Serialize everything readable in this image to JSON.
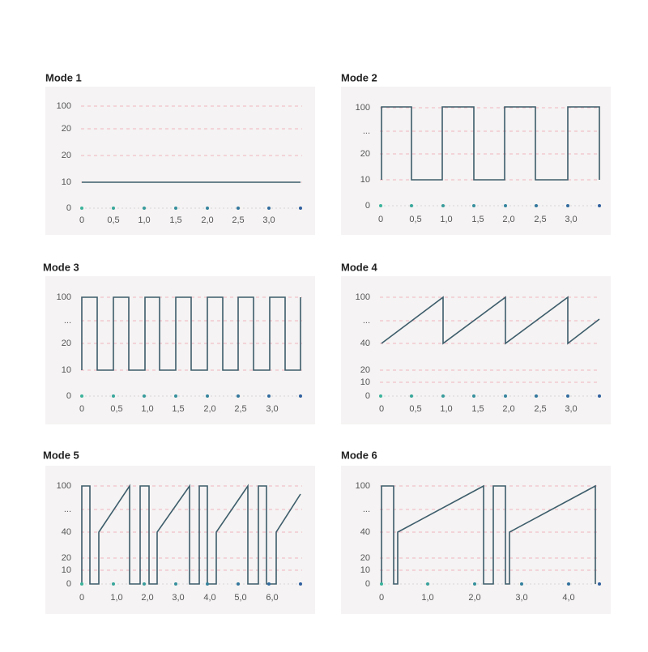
{
  "panels": [
    {
      "title": "Mode 1",
      "y_labels": [
        "100",
        "20",
        "20",
        "10",
        "0"
      ],
      "x_labels": [
        "0",
        "0,5",
        "1,0",
        "1,5",
        "2,0",
        "2,5",
        "3,0"
      ]
    },
    {
      "title": "Mode 2",
      "y_labels": [
        "100",
        "...",
        "20",
        "10",
        "0"
      ],
      "x_labels": [
        "0",
        "0,5",
        "1,0",
        "1,5",
        "2,0",
        "2,5",
        "3,0"
      ]
    },
    {
      "title": "Mode 3",
      "y_labels": [
        "100",
        "...",
        "20",
        "10",
        "0"
      ],
      "x_labels": [
        "0",
        "0,5",
        "1,0",
        "1,5",
        "2,0",
        "2,5",
        "3,0"
      ]
    },
    {
      "title": "Mode 4",
      "y_labels": [
        "100",
        "...",
        "40",
        "20",
        "10",
        "0"
      ],
      "x_labels": [
        "0",
        "0,5",
        "1,0",
        "1,5",
        "2,0",
        "2,5",
        "3,0"
      ]
    },
    {
      "title": "Mode 5",
      "y_labels": [
        "100",
        "...",
        "40",
        "20",
        "10",
        "0"
      ],
      "x_labels": [
        "0",
        "1,0",
        "2,0",
        "3,0",
        "4,0",
        "5,0",
        "6,0"
      ]
    },
    {
      "title": "Mode 6",
      "y_labels": [
        "100",
        "...",
        "40",
        "20",
        "10",
        "0"
      ],
      "x_labels": [
        "0",
        "1,0",
        "2,0",
        "3,0",
        "4,0"
      ]
    }
  ]
}
